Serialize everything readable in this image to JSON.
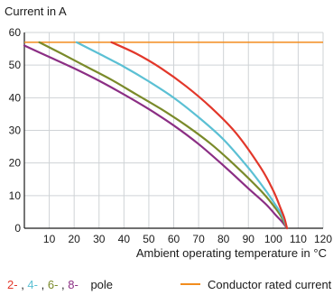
{
  "chart_data": {
    "type": "line",
    "ylabel": "Current in A",
    "xlabel": "Ambient operating temperature in °C",
    "xlim": [
      0,
      120
    ],
    "ylim": [
      0,
      60
    ],
    "xticks": [
      10,
      20,
      30,
      40,
      50,
      60,
      70,
      80,
      90,
      100,
      110,
      120
    ],
    "yticks": [
      0,
      10,
      20,
      30,
      40,
      50,
      60
    ],
    "grid": true,
    "legend": {
      "placement": "bottom",
      "pole_labels": [
        "2-",
        "4-",
        "6-",
        "8-"
      ],
      "pole_suffix": "pole",
      "rated_label": "Conductor rated current"
    },
    "rated_current": {
      "value": 57,
      "color": "#f28c1e"
    },
    "series": [
      {
        "name": "2-",
        "color": "#e2372a",
        "x": [
          35,
          45,
          55,
          65,
          75,
          85,
          95,
          100,
          103,
          104.5,
          105.5
        ],
        "y": [
          57,
          53.5,
          49,
          43.5,
          37,
          29.2,
          18.5,
          11.5,
          6,
          3,
          0
        ]
      },
      {
        "name": "4-",
        "color": "#5bc0d4",
        "x": [
          21,
          30,
          40,
          50,
          60,
          70,
          80,
          90,
          97,
          101,
          103.5,
          105.5
        ],
        "y": [
          57,
          53.5,
          49.5,
          45,
          40,
          34,
          27.2,
          18.5,
          11.5,
          7,
          4,
          0
        ]
      },
      {
        "name": "6-",
        "color": "#7a8a2a",
        "x": [
          6,
          15,
          25,
          35,
          45,
          55,
          65,
          75,
          85,
          95,
          100,
          103,
          105.5
        ],
        "y": [
          57,
          53.5,
          49.5,
          45.5,
          41,
          36.5,
          31.5,
          25.8,
          19,
          11.5,
          7,
          3.8,
          0
        ]
      },
      {
        "name": "8-",
        "color": "#8b2e84",
        "x": [
          0,
          10,
          20,
          30,
          40,
          50,
          60,
          70,
          80,
          90,
          97,
          101,
          103.5,
          105.5
        ],
        "y": [
          56,
          52.5,
          49,
          45.2,
          41,
          36.5,
          31.5,
          25.8,
          19.2,
          12.2,
          7.4,
          4,
          2,
          0
        ]
      }
    ]
  }
}
